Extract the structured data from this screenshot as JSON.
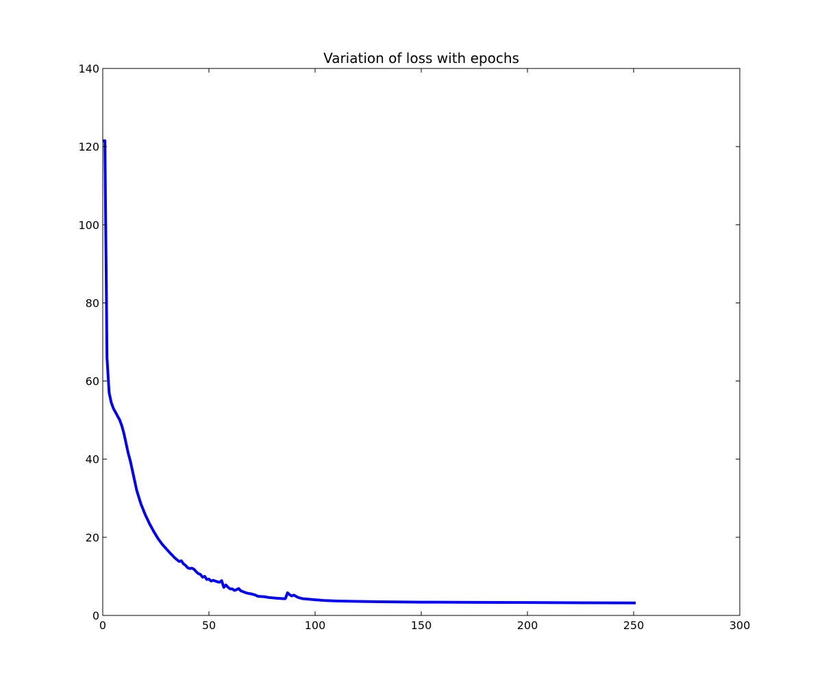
{
  "chart_data": {
    "type": "line",
    "title": "Variation of loss with epochs",
    "xlabel": "",
    "ylabel": "",
    "xlim": [
      0,
      300
    ],
    "ylim": [
      0,
      140
    ],
    "xticks": [
      0,
      50,
      100,
      150,
      200,
      250,
      300
    ],
    "yticks": [
      0,
      20,
      40,
      60,
      80,
      100,
      120,
      140
    ],
    "grid": false,
    "legend": "none",
    "series": [
      {
        "color": "#0000ff",
        "x": [
          0,
          1,
          2,
          3,
          4,
          5,
          6,
          7,
          8,
          9,
          10,
          11,
          12,
          13,
          14,
          15,
          16,
          18,
          20,
          22,
          24,
          26,
          28,
          30,
          32,
          34,
          36,
          37,
          38,
          39,
          40,
          41,
          42,
          43,
          44,
          45,
          46,
          47,
          48,
          49,
          50,
          51,
          52,
          53,
          54,
          55,
          56,
          57,
          58,
          59,
          60,
          61,
          62,
          63,
          64,
          65,
          66,
          68,
          70,
          72,
          73,
          76,
          78,
          80,
          82,
          85,
          86,
          87,
          88,
          89,
          90,
          92,
          94,
          96,
          100,
          105,
          110,
          120,
          130,
          150,
          175,
          200,
          225,
          251
        ],
        "y": [
          121.5,
          121.5,
          66,
          57,
          54.5,
          53,
          52,
          51,
          50,
          48.5,
          46.5,
          44,
          41.5,
          39.5,
          37,
          34.5,
          32,
          28.5,
          25.8,
          23.5,
          21.5,
          19.7,
          18.2,
          17,
          15.8,
          14.7,
          13.8,
          14.0,
          13.2,
          12.8,
          12.2,
          12.0,
          12.1,
          11.8,
          11.2,
          10.7,
          10.5,
          9.8,
          10.0,
          9.2,
          9.3,
          8.8,
          9.0,
          8.8,
          8.6,
          8.5,
          8.9,
          7.2,
          7.8,
          7.2,
          6.8,
          6.8,
          6.4,
          6.6,
          6.9,
          6.3,
          6.1,
          5.7,
          5.5,
          5.2,
          4.9,
          4.8,
          4.6,
          4.5,
          4.4,
          4.3,
          4.3,
          5.8,
          5.3,
          5.0,
          5.2,
          4.6,
          4.3,
          4.2,
          4.0,
          3.8,
          3.7,
          3.6,
          3.5,
          3.4,
          3.35,
          3.3,
          3.25,
          3.2
        ]
      }
    ]
  }
}
